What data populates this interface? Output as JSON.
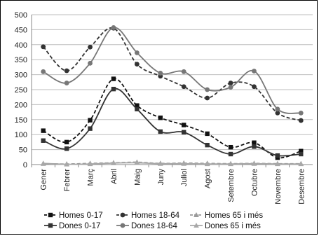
{
  "chart_data": {
    "type": "line",
    "title": "",
    "xlabel": "",
    "ylabel": "",
    "ylim": [
      0,
      500
    ],
    "y_ticks": [
      0,
      50,
      100,
      150,
      200,
      250,
      300,
      350,
      400,
      450,
      500
    ],
    "grid": "horizontal",
    "legend_position": "bottom",
    "categories": [
      "Gener",
      "Febrer",
      "Març",
      "Abril",
      "Maig",
      "Juny",
      "Juliol",
      "Agost",
      "Setembre",
      "Octubre",
      "Novembre",
      "Desembre"
    ],
    "series": [
      {
        "name": "Homes 0-17",
        "color": "#111111",
        "dash": true,
        "marker": "square",
        "values": [
          113,
          75,
          148,
          286,
          197,
          156,
          132,
          103,
          58,
          73,
          23,
          45
        ]
      },
      {
        "name": "Homes 18-64",
        "color": "#333333",
        "dash": true,
        "marker": "circle",
        "values": [
          393,
          313,
          392,
          455,
          335,
          295,
          260,
          222,
          272,
          260,
          172,
          147
        ]
      },
      {
        "name": "Homes 65 i més",
        "color": "#9a9a9a",
        "dash": true,
        "marker": "triangle",
        "values": [
          3,
          2,
          4,
          6,
          8,
          4,
          5,
          4,
          3,
          4,
          3,
          3
        ]
      },
      {
        "name": "Dones 0-17",
        "color": "#333333",
        "dash": false,
        "marker": "square",
        "values": [
          80,
          53,
          120,
          252,
          185,
          110,
          108,
          65,
          35,
          60,
          30,
          35
        ]
      },
      {
        "name": "Dones 18-64",
        "color": "#777777",
        "dash": false,
        "marker": "circle",
        "values": [
          310,
          272,
          338,
          457,
          373,
          305,
          310,
          250,
          258,
          312,
          185,
          172
        ]
      },
      {
        "name": "Dones 65 i més",
        "color": "#a8a8a8",
        "dash": false,
        "marker": "triangle",
        "values": [
          4,
          1,
          2,
          5,
          6,
          3,
          3,
          2,
          2,
          3,
          2,
          2
        ]
      }
    ]
  }
}
